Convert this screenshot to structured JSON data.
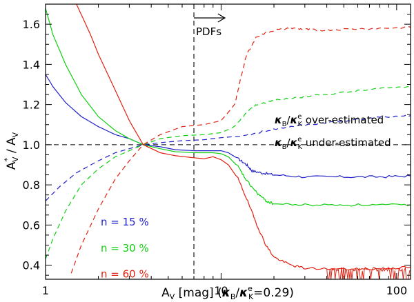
{
  "chart_data": {
    "type": "line",
    "xscale": "log",
    "xlim": [
      1,
      120
    ],
    "ylim": [
      0.33,
      1.7
    ],
    "xlabel": "A_V [mag] (κ_B/κ^e_K=0.29)",
    "xlabel_parts": {
      "main": "A",
      "main_sub": "V",
      "unit": " [mag] (",
      "kappa": "κ",
      "kappa_sub": "B",
      "slash": "/",
      "kappa2": "κ",
      "kappa2_sup": "e",
      "kappa2_sub": "K",
      "value": "=0.29)"
    },
    "ylabel": "A*_V / A_V",
    "ylabel_parts": {
      "a1": "A",
      "a1_sup": "*",
      "a1_sub": "V",
      "slash": " / ",
      "a2": "A",
      "a2_sub": "V"
    },
    "x_ticks": [
      {
        "value": 1,
        "label": "1"
      },
      {
        "value": 10,
        "label": "10"
      },
      {
        "value": 100,
        "label": "100"
      }
    ],
    "y_ticks": [
      {
        "value": 0.4,
        "label": "0.4"
      },
      {
        "value": 0.6,
        "label": "0.6"
      },
      {
        "value": 0.8,
        "label": "0.8"
      },
      {
        "value": 1.0,
        "label": "1.0"
      },
      {
        "value": 1.2,
        "label": "1.2"
      },
      {
        "value": 1.4,
        "label": "1.4"
      },
      {
        "value": 1.6,
        "label": "1.6"
      }
    ],
    "reference_lines": {
      "horizontal_y": 1.0,
      "vertical_x": 7.0
    },
    "pdfs_annotation": {
      "text": "PDFs",
      "arrow_from_x": 7.0,
      "arrow_to_x": 10.5
    },
    "over_label": {
      "kappa": "κ",
      "b": "B",
      "slash": "/",
      "kappa2": "κ",
      "e": "e",
      "k": "K",
      "text": " over-estimated"
    },
    "under_label": {
      "kappa": "κ",
      "b": "B",
      "slash": "/",
      "kappa2": "κ",
      "e": "e",
      "k": "K",
      "text": " under-estimated"
    },
    "series": [
      {
        "name": "n = 15 %",
        "color": "#2020c8",
        "legend_y": 0.615,
        "solid": [
          [
            1,
            1.35
          ],
          [
            1.1,
            1.29
          ],
          [
            1.3,
            1.21
          ],
          [
            1.6,
            1.14
          ],
          [
            2,
            1.09
          ],
          [
            2.5,
            1.05
          ],
          [
            3,
            1.03
          ],
          [
            3.6,
            1.0
          ],
          [
            4.5,
            0.99
          ],
          [
            5.5,
            0.975
          ],
          [
            7,
            0.97
          ],
          [
            9,
            0.97
          ],
          [
            10,
            0.97
          ],
          [
            11,
            0.96
          ],
          [
            12.5,
            0.93
          ],
          [
            14,
            0.9
          ],
          [
            15,
            0.87
          ],
          [
            17,
            0.86
          ],
          [
            20,
            0.85
          ],
          [
            30,
            0.84
          ],
          [
            50,
            0.84
          ],
          [
            80,
            0.84
          ],
          [
            120,
            0.845
          ]
        ],
        "dashed": [
          [
            1,
            0.72
          ],
          [
            1.2,
            0.79
          ],
          [
            1.5,
            0.86
          ],
          [
            2,
            0.92
          ],
          [
            2.5,
            0.96
          ],
          [
            3,
            0.98
          ],
          [
            3.6,
            1.0
          ],
          [
            4.5,
            1.01
          ],
          [
            6,
            1.02
          ],
          [
            8,
            1.025
          ],
          [
            10,
            1.035
          ],
          [
            14,
            1.045
          ],
          [
            18,
            1.07
          ],
          [
            25,
            1.09
          ],
          [
            40,
            1.11
          ],
          [
            60,
            1.125
          ],
          [
            90,
            1.14
          ],
          [
            120,
            1.145
          ]
        ]
      },
      {
        "name": "n = 30 %",
        "color": "#10d010",
        "legend_y": 0.485,
        "solid": [
          [
            1,
            1.68
          ],
          [
            1.1,
            1.55
          ],
          [
            1.3,
            1.4
          ],
          [
            1.6,
            1.25
          ],
          [
            2,
            1.14
          ],
          [
            2.5,
            1.07
          ],
          [
            3,
            1.03
          ],
          [
            3.6,
            1.0
          ],
          [
            4.5,
            0.98
          ],
          [
            5.5,
            0.965
          ],
          [
            7,
            0.96
          ],
          [
            9,
            0.96
          ],
          [
            10,
            0.955
          ],
          [
            11,
            0.94
          ],
          [
            12.5,
            0.89
          ],
          [
            14,
            0.82
          ],
          [
            16,
            0.76
          ],
          [
            18,
            0.72
          ],
          [
            20,
            0.705
          ],
          [
            30,
            0.7
          ],
          [
            50,
            0.7
          ],
          [
            80,
            0.7
          ],
          [
            120,
            0.7
          ]
        ],
        "dashed": [
          [
            1,
            0.43
          ],
          [
            1.1,
            0.53
          ],
          [
            1.3,
            0.67
          ],
          [
            1.6,
            0.8
          ],
          [
            2,
            0.88
          ],
          [
            2.5,
            0.94
          ],
          [
            3,
            0.97
          ],
          [
            3.6,
            1.0
          ],
          [
            4.5,
            1.03
          ],
          [
            6,
            1.045
          ],
          [
            8,
            1.05
          ],
          [
            10,
            1.06
          ],
          [
            12,
            1.09
          ],
          [
            14,
            1.16
          ],
          [
            16,
            1.2
          ],
          [
            20,
            1.22
          ],
          [
            30,
            1.24
          ],
          [
            50,
            1.26
          ],
          [
            80,
            1.28
          ],
          [
            120,
            1.29
          ]
        ]
      },
      {
        "name": "n = 60 %",
        "color": "#e02010",
        "legend_y": 0.355,
        "solid": [
          [
            1.5,
            1.7
          ],
          [
            1.8,
            1.55
          ],
          [
            2,
            1.45
          ],
          [
            2.5,
            1.27
          ],
          [
            3,
            1.12
          ],
          [
            3.6,
            1.0
          ],
          [
            4.5,
            0.96
          ],
          [
            5.5,
            0.945
          ],
          [
            7,
            0.935
          ],
          [
            8,
            0.93
          ],
          [
            9,
            0.94
          ],
          [
            10,
            0.925
          ],
          [
            11,
            0.9
          ],
          [
            12.5,
            0.83
          ],
          [
            14,
            0.73
          ],
          [
            16,
            0.6
          ],
          [
            18,
            0.5
          ],
          [
            20,
            0.44
          ],
          [
            25,
            0.4
          ],
          [
            30,
            0.385
          ],
          [
            50,
            0.38
          ],
          [
            70,
            0.38
          ],
          [
            90,
            0.385
          ],
          [
            120,
            0.39
          ]
        ],
        "noise_segment": {
          "from_x": 40,
          "to_x": 120,
          "base": 0.38,
          "min_dip": 0.33
        },
        "dashed": [
          [
            1.4,
            0.36
          ],
          [
            1.6,
            0.5
          ],
          [
            2,
            0.68
          ],
          [
            2.5,
            0.83
          ],
          [
            3,
            0.92
          ],
          [
            3.6,
            1.0
          ],
          [
            4.5,
            1.05
          ],
          [
            6,
            1.09
          ],
          [
            8,
            1.1
          ],
          [
            10,
            1.12
          ],
          [
            12,
            1.2
          ],
          [
            13,
            1.34
          ],
          [
            14,
            1.45
          ],
          [
            16,
            1.54
          ],
          [
            20,
            1.57
          ],
          [
            25,
            1.58
          ],
          [
            30,
            1.575
          ],
          [
            35,
            1.57
          ],
          [
            50,
            1.575
          ],
          [
            80,
            1.58
          ],
          [
            120,
            1.585
          ]
        ]
      }
    ]
  }
}
